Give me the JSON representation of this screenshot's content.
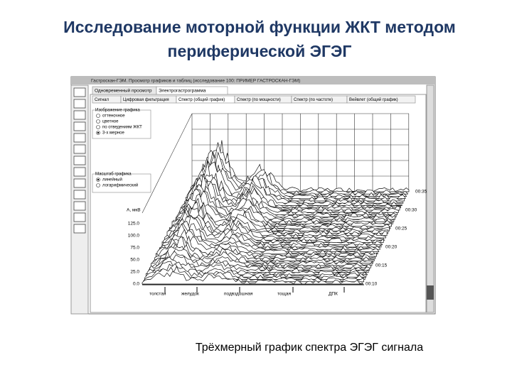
{
  "slide": {
    "title_line1": "Исследование моторной функции ЖКТ методом",
    "title_line2": "периферической ЭГЭГ",
    "caption": "Трёхмерный график спектра ЭГЭГ сигнала"
  },
  "window": {
    "title": "Гастроскан-ГЭМ. Просмотр графиков и таблиц (исследование 100: ПРИМЕР ГАСТРОСКАН-ГЭМ)",
    "tabs": [
      "Одновременный просмотр",
      "Электрогастрограмма"
    ],
    "subtabs": [
      "Сигнал",
      "Цифровая фильтрация",
      "Спектр (общий график)",
      "Спектр (по мощности)",
      "Спектр (по частоте)",
      "Вейвлет (общий график)"
    ],
    "image_group": {
      "title": "Изображение графика",
      "options": [
        "оттеночное",
        "цветное",
        "по отведениям ЖКТ",
        "3-х мерное"
      ]
    },
    "scale_group": {
      "title": "Масштаб графика",
      "options": [
        "линейный",
        "логарифмический"
      ]
    },
    "y_axis_label": "A, мкВ",
    "y_ticks": [
      "0.0",
      "25.0",
      "50.0",
      "75.0",
      "100.0",
      "125.0"
    ],
    "time_ticks": [
      "00:10",
      "00:15",
      "00:20",
      "00:25",
      "00:30",
      "00:35"
    ],
    "organ_labels": [
      "толстая",
      "желудок",
      "подвздошная",
      "тощая",
      "ДПК"
    ]
  }
}
